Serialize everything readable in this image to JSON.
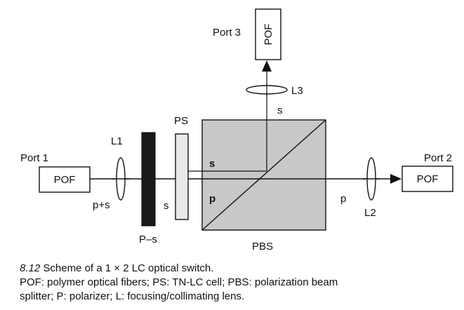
{
  "diagram": {
    "ports": {
      "port1": "Port 1",
      "port2": "Port 2",
      "port3": "Port 3"
    },
    "fiber_label": "POF",
    "lenses": {
      "l1": "L1",
      "l2": "L2",
      "l3": "L3"
    },
    "polarizer_label": "P–s",
    "cell_label": "PS",
    "splitter_label": "PBS",
    "beam_labels": {
      "input": "p+s",
      "after_polarizer": "s",
      "vertical_out": "s",
      "cube_s": "s",
      "cube_p": "p",
      "horizontal_out": "p"
    },
    "colors": {
      "cube_fill": "#c8c8c8",
      "polarizer_fill": "#1a1a1a",
      "cell_fill": "#e8e8e8"
    }
  },
  "caption": {
    "number": "8.12",
    "title": "Scheme of a 1 × 2 LC optical switch.",
    "line2": "POF: polymer optical fibers; PS: TN-LC cell; PBS: polarization beam",
    "line3": "splitter; P: polarizer; L: focusing/collimating lens."
  }
}
